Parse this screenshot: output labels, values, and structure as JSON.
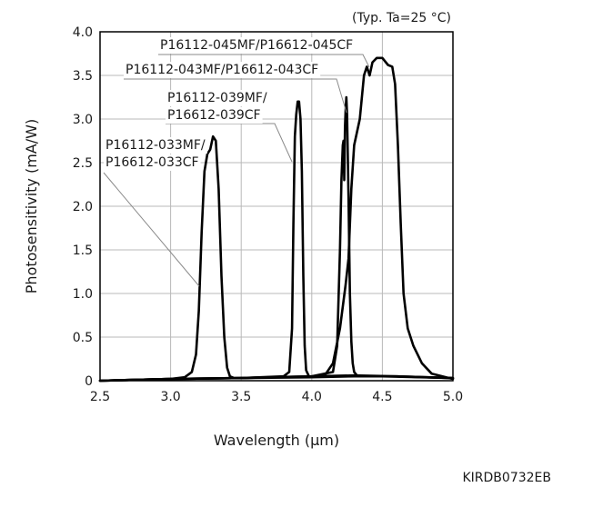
{
  "chart_data": {
    "type": "line",
    "title": "",
    "condition_note": "(Typ. Ta=25 °C)",
    "xlabel": "Wavelength (µm)",
    "ylabel": "Photosensitivity (mA/W)",
    "footer_code": "KIRDB0732EB",
    "xlim": [
      2.5,
      5.0
    ],
    "ylim": [
      0,
      4.0
    ],
    "x_ticks": [
      "2.5",
      "3.0",
      "3.5",
      "4.0",
      "4.5",
      "5.0"
    ],
    "y_ticks": [
      "0",
      "0.5",
      "1.0",
      "1.5",
      "2.0",
      "2.5",
      "3.0",
      "3.5",
      "4.0"
    ],
    "grid": true,
    "series": [
      {
        "name": "P16112-033MF/P16612-033CF",
        "x": [
          2.5,
          3.0,
          3.1,
          3.15,
          3.18,
          3.2,
          3.22,
          3.24,
          3.26,
          3.28,
          3.3,
          3.32,
          3.34,
          3.36,
          3.38,
          3.4,
          3.42,
          3.45,
          3.5,
          3.7,
          4.0,
          4.3,
          4.6,
          5.0
        ],
        "y": [
          0.0,
          0.02,
          0.04,
          0.1,
          0.3,
          0.8,
          1.7,
          2.4,
          2.6,
          2.65,
          2.8,
          2.75,
          2.2,
          1.2,
          0.5,
          0.15,
          0.05,
          0.03,
          0.03,
          0.04,
          0.05,
          0.06,
          0.05,
          0.03
        ]
      },
      {
        "name": "P16112-039MF/P16612-039CF",
        "x": [
          2.5,
          3.0,
          3.5,
          3.8,
          3.84,
          3.86,
          3.87,
          3.88,
          3.89,
          3.9,
          3.91,
          3.92,
          3.93,
          3.94,
          3.95,
          3.96,
          3.98,
          4.0,
          4.3,
          4.6,
          5.0
        ],
        "y": [
          0.0,
          0.02,
          0.03,
          0.05,
          0.1,
          0.6,
          1.8,
          2.8,
          3.05,
          3.2,
          3.2,
          3.0,
          2.4,
          1.2,
          0.4,
          0.12,
          0.05,
          0.04,
          0.05,
          0.05,
          0.03
        ]
      },
      {
        "name": "P16112-043MF/P16612-043CF",
        "x": [
          2.5,
          3.0,
          3.5,
          4.0,
          4.15,
          4.18,
          4.2,
          4.21,
          4.22,
          4.225,
          4.23,
          4.235,
          4.24,
          4.245,
          4.25,
          4.26,
          4.27,
          4.28,
          4.29,
          4.3,
          4.32,
          4.35,
          4.4,
          4.5,
          5.0
        ],
        "y": [
          0.0,
          0.02,
          0.03,
          0.05,
          0.1,
          0.4,
          1.5,
          2.3,
          2.7,
          2.75,
          2.3,
          2.9,
          3.1,
          3.25,
          3.05,
          2.1,
          1.0,
          0.45,
          0.2,
          0.1,
          0.06,
          0.05,
          0.05,
          0.05,
          0.03
        ]
      },
      {
        "name": "P16112-045MF/P16612-045CF",
        "x": [
          2.5,
          3.0,
          3.5,
          4.0,
          4.1,
          4.15,
          4.2,
          4.24,
          4.26,
          4.28,
          4.3,
          4.34,
          4.37,
          4.39,
          4.41,
          4.43,
          4.46,
          4.5,
          4.54,
          4.57,
          4.59,
          4.61,
          4.63,
          4.65,
          4.68,
          4.72,
          4.78,
          4.85,
          5.0
        ],
        "y": [
          0.0,
          0.02,
          0.03,
          0.04,
          0.08,
          0.2,
          0.6,
          1.1,
          1.4,
          2.2,
          2.7,
          3.0,
          3.5,
          3.6,
          3.5,
          3.65,
          3.7,
          3.7,
          3.62,
          3.6,
          3.4,
          2.7,
          1.8,
          1.0,
          0.6,
          0.4,
          0.2,
          0.08,
          0.02
        ]
      }
    ],
    "annotations": [
      {
        "lines": [
          "P16112-045MF/P16612-045CF"
        ]
      },
      {
        "lines": [
          "P16112-043MF/P16612-043CF"
        ]
      },
      {
        "lines": [
          "P16112-039MF/",
          "P16612-039CF"
        ]
      },
      {
        "lines": [
          "P16112-033MF/",
          "P16612-033CF"
        ]
      }
    ]
  }
}
